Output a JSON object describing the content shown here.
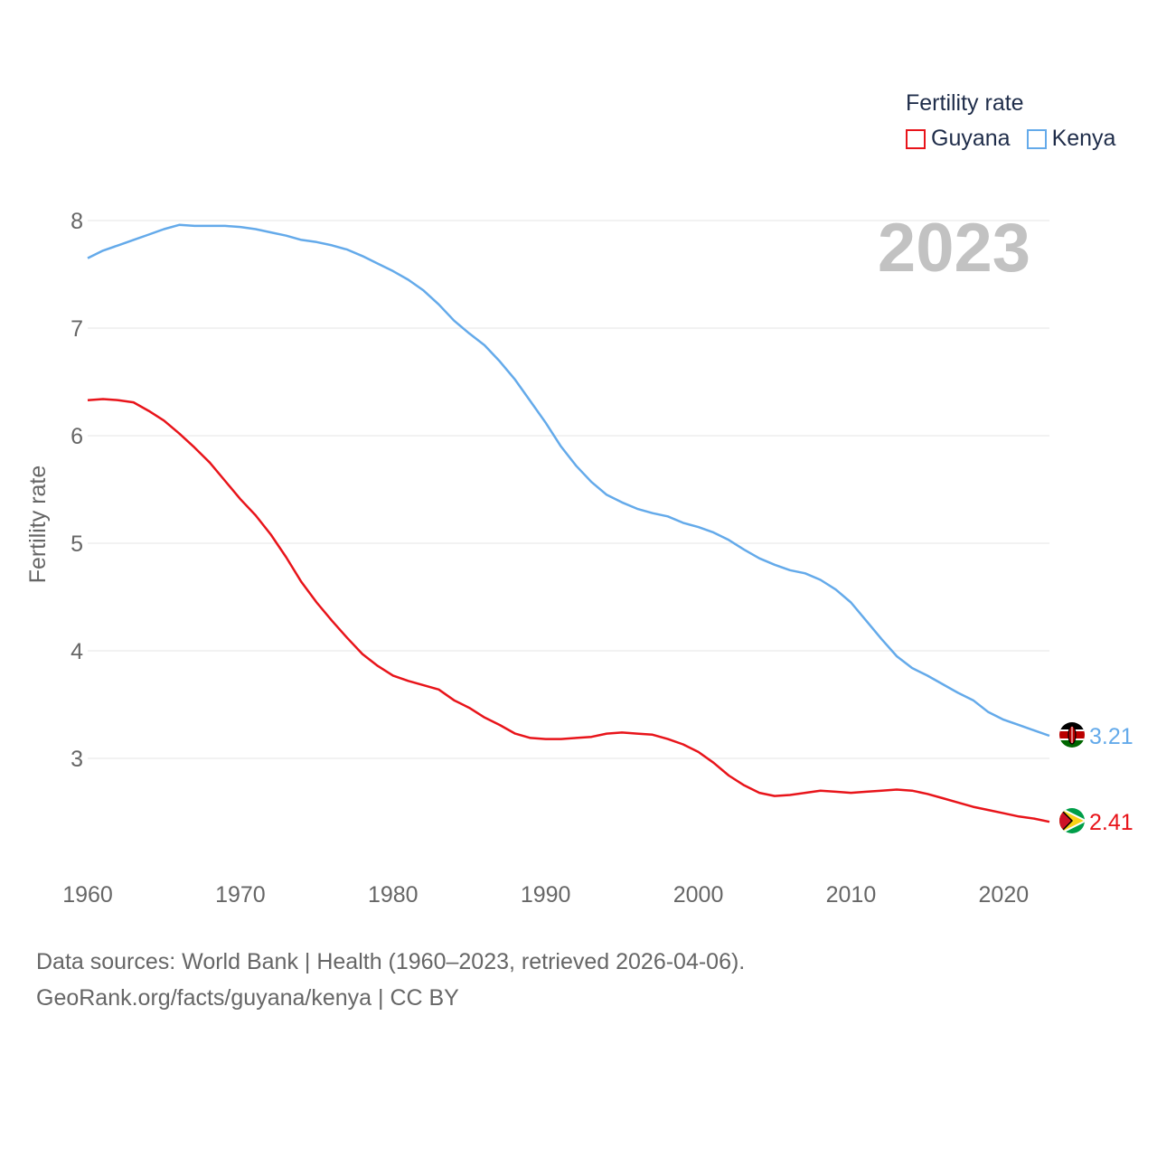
{
  "legend": {
    "title": "Fertility rate",
    "items": [
      {
        "name": "Guyana",
        "color": "#e8141a"
      },
      {
        "name": "Kenya",
        "color": "#64aaea"
      }
    ]
  },
  "footer": {
    "line1": "Data sources: World Bank | Health (1960–2023, retrieved 2026-04-06).",
    "link": "GeoRank.org/facts/guyana/kenya",
    "license": " | CC BY"
  },
  "chart_data": {
    "type": "line",
    "title": "Fertility rate",
    "current_year": "2023",
    "xlabel": "",
    "ylabel": "Fertility rate",
    "xlim": [
      1960,
      2023
    ],
    "ylim": [
      2,
      8
    ],
    "yticks": [
      3,
      4,
      5,
      6,
      7,
      8
    ],
    "xticks": [
      1960,
      1970,
      1980,
      1990,
      2000,
      2010,
      2020
    ],
    "grid": true,
    "legend_position": "top-right",
    "x": [
      1960,
      1961,
      1962,
      1963,
      1964,
      1965,
      1966,
      1967,
      1968,
      1969,
      1970,
      1971,
      1972,
      1973,
      1974,
      1975,
      1976,
      1977,
      1978,
      1979,
      1980,
      1981,
      1982,
      1983,
      1984,
      1985,
      1986,
      1987,
      1988,
      1989,
      1990,
      1991,
      1992,
      1993,
      1994,
      1995,
      1996,
      1997,
      1998,
      1999,
      2000,
      2001,
      2002,
      2003,
      2004,
      2005,
      2006,
      2007,
      2008,
      2009,
      2010,
      2011,
      2012,
      2013,
      2014,
      2015,
      2016,
      2017,
      2018,
      2019,
      2020,
      2021,
      2022,
      2023
    ],
    "series": [
      {
        "name": "Guyana",
        "color": "#e8141a",
        "end_label": "2.41",
        "values": [
          6.33,
          6.34,
          6.33,
          6.31,
          6.23,
          6.14,
          6.02,
          5.89,
          5.75,
          5.58,
          5.41,
          5.26,
          5.08,
          4.87,
          4.64,
          4.45,
          4.28,
          4.12,
          3.97,
          3.86,
          3.77,
          3.72,
          3.68,
          3.64,
          3.54,
          3.47,
          3.38,
          3.31,
          3.23,
          3.19,
          3.18,
          3.18,
          3.19,
          3.2,
          3.23,
          3.24,
          3.23,
          3.22,
          3.18,
          3.13,
          3.06,
          2.96,
          2.84,
          2.75,
          2.68,
          2.65,
          2.66,
          2.68,
          2.7,
          2.69,
          2.68,
          2.69,
          2.7,
          2.71,
          2.7,
          2.67,
          2.63,
          2.59,
          2.55,
          2.52,
          2.49,
          2.46,
          2.44,
          2.41
        ]
      },
      {
        "name": "Kenya",
        "color": "#64aaea",
        "end_label": "3.21",
        "values": [
          7.65,
          7.72,
          7.77,
          7.82,
          7.87,
          7.92,
          7.96,
          7.95,
          7.95,
          7.95,
          7.94,
          7.92,
          7.89,
          7.86,
          7.82,
          7.8,
          7.77,
          7.73,
          7.67,
          7.6,
          7.53,
          7.45,
          7.35,
          7.22,
          7.07,
          6.95,
          6.84,
          6.69,
          6.52,
          6.32,
          6.12,
          5.9,
          5.72,
          5.57,
          5.45,
          5.38,
          5.32,
          5.28,
          5.25,
          5.19,
          5.15,
          5.1,
          5.03,
          4.94,
          4.86,
          4.8,
          4.75,
          4.72,
          4.66,
          4.57,
          4.45,
          4.28,
          4.11,
          3.95,
          3.84,
          3.77,
          3.69,
          3.61,
          3.54,
          3.43,
          3.36,
          3.31,
          3.26,
          3.21
        ]
      }
    ]
  }
}
